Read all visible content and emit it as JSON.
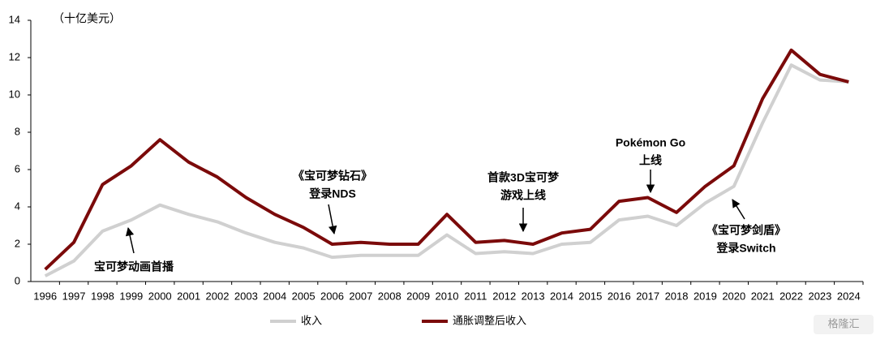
{
  "chart_data": {
    "type": "line",
    "unit_label": "（十亿美元）",
    "categories": [
      "1996",
      "1997",
      "1998",
      "1999",
      "2000",
      "2001",
      "2002",
      "2003",
      "2004",
      "2005",
      "2006",
      "2007",
      "2008",
      "2009",
      "2010",
      "2011",
      "2012",
      "2013",
      "2014",
      "2015",
      "2016",
      "2017",
      "2018",
      "2019",
      "2020",
      "2021",
      "2022",
      "2023",
      "2024"
    ],
    "series": [
      {
        "name": "收入",
        "color": "#d0d0d0",
        "values": [
          0.3,
          1.1,
          2.7,
          3.3,
          4.1,
          3.6,
          3.2,
          2.6,
          2.1,
          1.8,
          1.3,
          1.4,
          1.4,
          1.4,
          2.5,
          1.5,
          1.6,
          1.5,
          2.0,
          2.1,
          3.3,
          3.5,
          3.0,
          4.2,
          5.1,
          8.5,
          11.6,
          10.8,
          10.7
        ]
      },
      {
        "name": "通胀调整后收入",
        "color": "#7b0a0a",
        "values": [
          0.65,
          2.1,
          5.2,
          6.2,
          7.6,
          6.4,
          5.6,
          4.5,
          3.6,
          2.9,
          2.0,
          2.1,
          2.0,
          2.0,
          3.6,
          2.1,
          2.2,
          2.0,
          2.6,
          2.8,
          4.3,
          4.5,
          3.7,
          5.1,
          6.2,
          9.8,
          12.4,
          11.1,
          10.7
        ]
      }
    ],
    "ylim": [
      0,
      14
    ],
    "yticks": [
      0,
      2,
      4,
      6,
      8,
      10,
      12,
      14
    ],
    "grid": false,
    "annotations": [
      {
        "lines": [
          "宝可梦动画首播"
        ]
      },
      {
        "lines": [
          "《宝可梦钻石》",
          "登录NDS"
        ]
      },
      {
        "lines": [
          "首款3D宝可梦",
          "游戏上线"
        ]
      },
      {
        "lines": [
          "Pokémon Go",
          "上线"
        ]
      },
      {
        "lines": [
          "《宝可梦剑盾》",
          "登录Switch"
        ]
      }
    ],
    "watermark": "格隆汇"
  }
}
